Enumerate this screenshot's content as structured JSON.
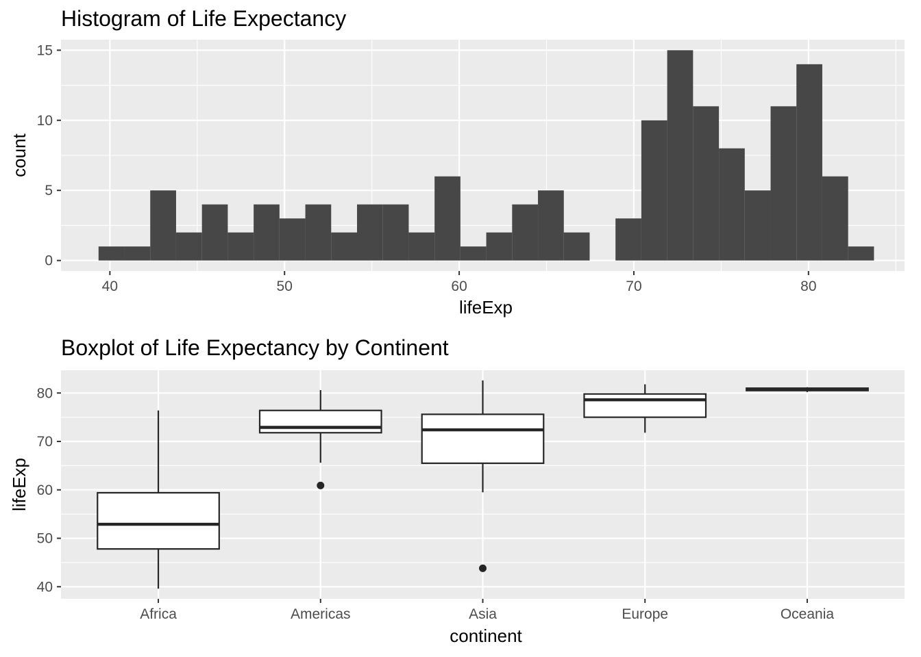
{
  "chart_data": [
    {
      "type": "bar",
      "title": "Histogram of Life Expectancy",
      "xlabel": "lifeExp",
      "ylabel": "count",
      "xlim": [
        37.2,
        85.5
      ],
      "ylim": [
        -0.75,
        15.75
      ],
      "x_ticks": [
        40,
        50,
        60,
        70,
        80
      ],
      "y_ticks": [
        0,
        5,
        10,
        15
      ],
      "bin_width": 1.48,
      "bin_start": 39.35,
      "counts": [
        1,
        1,
        5,
        2,
        4,
        2,
        4,
        3,
        4,
        2,
        4,
        4,
        2,
        6,
        1,
        2,
        4,
        5,
        2,
        0,
        3,
        10,
        15,
        11,
        8,
        5,
        11,
        14,
        6,
        1
      ],
      "grid": true,
      "legend": "none"
    },
    {
      "type": "box",
      "title": "Boxplot of Life Expectancy by Continent",
      "xlabel": "continent",
      "ylabel": "lifeExp",
      "ylim": [
        37.5,
        84.7
      ],
      "y_ticks": [
        40,
        50,
        60,
        70,
        80
      ],
      "categories": [
        "Africa",
        "Americas",
        "Asia",
        "Europe",
        "Oceania"
      ],
      "boxes": [
        {
          "min": 39.6,
          "q1": 47.8,
          "median": 52.9,
          "q3": 59.4,
          "max": 76.4,
          "outliers": []
        },
        {
          "min": 65.6,
          "q1": 71.8,
          "median": 72.9,
          "q3": 76.4,
          "max": 80.6,
          "outliers": [
            60.9
          ]
        },
        {
          "min": 59.5,
          "q1": 65.5,
          "median": 72.4,
          "q3": 75.6,
          "max": 82.6,
          "outliers": [
            43.8
          ]
        },
        {
          "min": 71.8,
          "q1": 75.0,
          "median": 78.6,
          "q3": 79.8,
          "max": 81.8,
          "outliers": []
        },
        {
          "min": 80.2,
          "q1": 80.5,
          "median": 80.7,
          "q3": 81.0,
          "max": 81.2,
          "outliers": []
        }
      ],
      "grid": true,
      "legend": "none"
    }
  ]
}
